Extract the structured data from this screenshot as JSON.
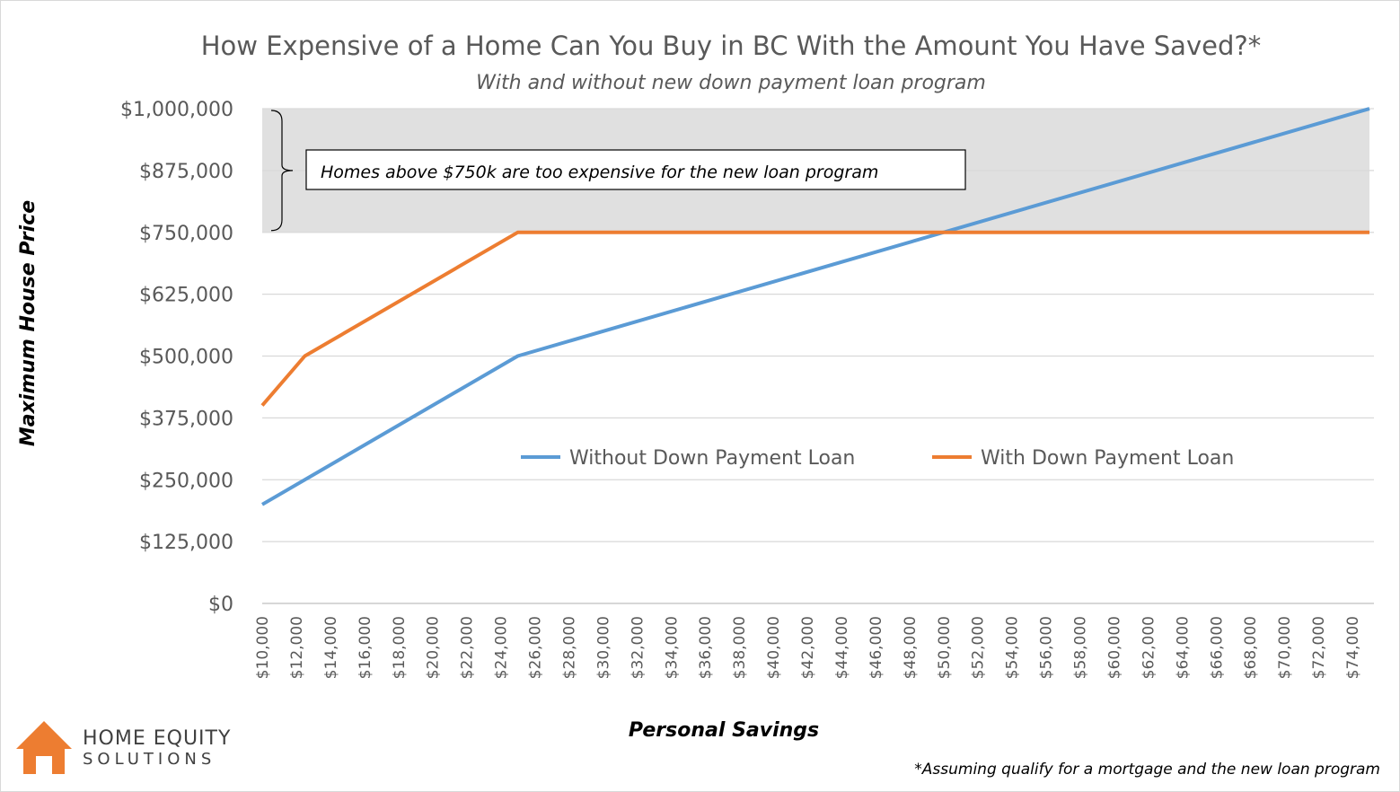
{
  "chart_data": {
    "type": "line",
    "title": "How Expensive of a Home Can You Buy in BC With the Amount You Have Saved?*",
    "subtitle": "With and without new down payment loan program",
    "xlabel": "Personal Savings",
    "ylabel": "Maximum House Price",
    "xlim": [
      10000,
      75000
    ],
    "ylim": [
      0,
      1000000
    ],
    "y_ticks": [
      "$0",
      "$125,000",
      "$250,000",
      "$375,000",
      "$500,000",
      "$625,000",
      "$750,000",
      "$875,000",
      "$1,000,000"
    ],
    "x_ticks": [
      "$10,000",
      "$12,000",
      "$14,000",
      "$16,000",
      "$18,000",
      "$20,000",
      "$22,000",
      "$24,000",
      "$26,000",
      "$28,000",
      "$30,000",
      "$32,000",
      "$34,000",
      "$36,000",
      "$38,000",
      "$40,000",
      "$42,000",
      "$44,000",
      "$46,000",
      "$48,000",
      "$50,000",
      "$52,000",
      "$54,000",
      "$56,000",
      "$58,000",
      "$60,000",
      "$62,000",
      "$64,000",
      "$66,000",
      "$68,000",
      "$70,000",
      "$72,000",
      "$74,000"
    ],
    "grid": true,
    "legend_position": "center-right",
    "shaded_region": {
      "y_from": 750000,
      "y_to": 1000000,
      "label": "Homes above $750k are too expensive for the new loan program"
    },
    "series": [
      {
        "name": "Without Down Payment Loan",
        "color": "#5b9bd5",
        "x": [
          10000,
          25000,
          75000
        ],
        "y": [
          200000,
          500000,
          1000000
        ]
      },
      {
        "name": "With Down Payment Loan",
        "color": "#ed7d31",
        "x": [
          10000,
          12500,
          25000,
          75000
        ],
        "y": [
          400000,
          500000,
          750000,
          750000
        ]
      }
    ]
  },
  "footnote": "*Assuming qualify for a mortgage and the new loan program",
  "logo": {
    "line1": "HOME EQUITY",
    "line2": "SOLUTIONS",
    "color": "#ed7d31"
  }
}
